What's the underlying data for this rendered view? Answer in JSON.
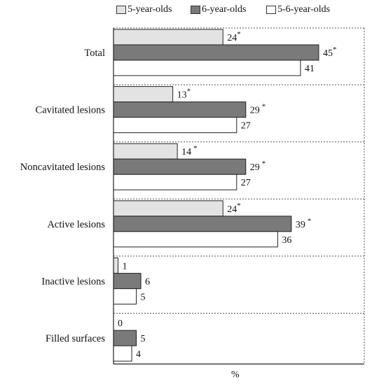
{
  "chart_data": {
    "type": "bar",
    "orientation": "horizontal",
    "categories": [
      "Total",
      "Cavitated lesions",
      "Noncavitated lesions",
      "Active lesions",
      "Inactive lesions",
      "Filled surfaces"
    ],
    "series": [
      {
        "name": "5-year-olds",
        "color": "#e3e3e3",
        "values": [
          24,
          13,
          14,
          24,
          1,
          0
        ],
        "labels": [
          "24*",
          "13*",
          "14 *",
          "24*",
          "1",
          "0"
        ]
      },
      {
        "name": "6-year-olds",
        "color": "#7a7a7a",
        "values": [
          45,
          29,
          29,
          39,
          6,
          5
        ],
        "labels": [
          "45*",
          "29 *",
          "29 *",
          "39 *",
          "6",
          "5"
        ]
      },
      {
        "name": "5-6-year-olds",
        "color": "#ffffff",
        "values": [
          41,
          27,
          27,
          36,
          5,
          4
        ],
        "labels": [
          "41",
          "27",
          "27",
          "36",
          "5",
          "4"
        ]
      }
    ],
    "xlabel": "%",
    "xlim": [
      0,
      50
    ],
    "grid": "dashed category separators",
    "legend_position": "top"
  }
}
